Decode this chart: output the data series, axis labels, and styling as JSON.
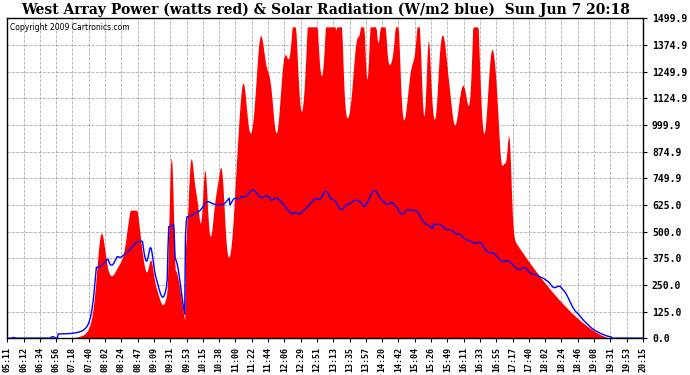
{
  "title": "West Array Power (watts red) & Solar Radiation (W/m2 blue)  Sun Jun 7 20:18",
  "copyright": "Copyright 2009 Cartronics.com",
  "y_ticks": [
    0.0,
    125.0,
    250.0,
    375.0,
    500.0,
    625.0,
    749.9,
    874.9,
    999.9,
    1124.9,
    1249.9,
    1374.9,
    1499.9
  ],
  "y_max": 1499.9,
  "y_min": 0.0,
  "background_color": "#ffffff",
  "plot_bg_color": "#ffffff",
  "grid_color": "#aaaaaa",
  "fill_color": "#ff0000",
  "line_color": "#0000ff",
  "title_fontsize": 10,
  "x_labels": [
    "05:11",
    "06:12",
    "06:34",
    "06:56",
    "07:18",
    "07:40",
    "08:02",
    "08:24",
    "08:47",
    "09:09",
    "09:31",
    "09:53",
    "10:15",
    "10:38",
    "11:00",
    "11:22",
    "11:44",
    "12:06",
    "12:29",
    "12:51",
    "13:13",
    "13:35",
    "13:57",
    "14:20",
    "14:42",
    "15:04",
    "15:26",
    "15:49",
    "16:11",
    "16:33",
    "16:55",
    "17:17",
    "17:40",
    "18:02",
    "18:24",
    "18:46",
    "19:08",
    "19:31",
    "19:53",
    "20:15"
  ]
}
